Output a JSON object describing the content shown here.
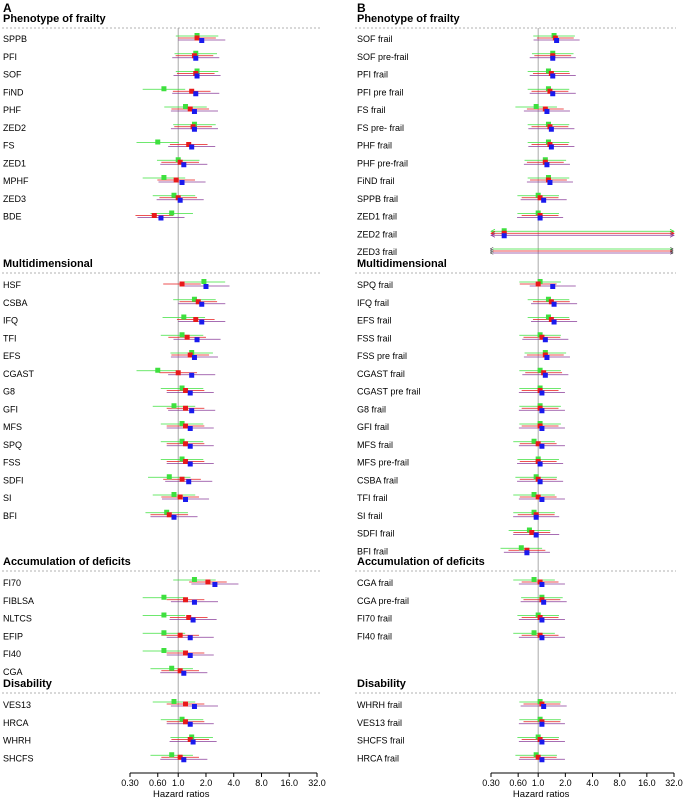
{
  "figure": {
    "x_axis_label": "Hazard ratios",
    "x_ticks": [
      "0.30",
      "0.60",
      "1.0",
      "2.0",
      "4.0",
      "8.0",
      "16.0",
      "32.0"
    ]
  },
  "colors": {
    "red": "#e8191a",
    "green": "#3ee03e",
    "blue": "#1a1aee",
    "purple": "#8a3c9a",
    "sep": "#999999",
    "ref": "#aaaaaa"
  },
  "chart_data": [
    {
      "type": "forest",
      "panel": "A",
      "xlabel": "Hazard ratios",
      "xscale": "log2",
      "xlim": [
        0.3,
        32
      ],
      "reference_line": 1.0,
      "sections": [
        {
          "title": "Phenotype of frailty",
          "rows": [
            {
              "label": "SPPB",
              "green": 1.6,
              "red": 1.6,
              "blue": 1.8
            },
            {
              "label": "PFI",
              "green": 1.55,
              "red": 1.5,
              "blue": 1.55
            },
            {
              "label": "SOF",
              "green": 1.6,
              "red": 1.55,
              "blue": 1.6
            },
            {
              "label": "FiND",
              "green": 0.7,
              "red": 1.4,
              "blue": 1.55
            },
            {
              "label": "PHF",
              "green": 1.2,
              "red": 1.35,
              "blue": 1.5
            },
            {
              "label": "ZED2",
              "green": 1.5,
              "red": 1.45,
              "blue": 1.5
            },
            {
              "label": "FS",
              "green": 0.6,
              "red": 1.3,
              "blue": 1.4
            },
            {
              "label": "ZED1",
              "green": 1.0,
              "red": 1.05,
              "blue": 1.15
            },
            {
              "label": "MPHF",
              "green": 0.7,
              "red": 0.95,
              "blue": 1.1
            },
            {
              "label": "ZED3",
              "green": 0.9,
              "red": 1.0,
              "blue": 1.05
            },
            {
              "label": "BDE",
              "green": 0.85,
              "red": 0.55,
              "blue": 0.65
            }
          ]
        },
        {
          "title": "Multidimensional",
          "rows": [
            {
              "label": "HSF",
              "green": 1.9,
              "red": 1.1,
              "blue": 2.0
            },
            {
              "label": "CSBA",
              "green": 1.5,
              "red": 1.65,
              "blue": 1.8
            },
            {
              "label": "IFQ",
              "green": 1.15,
              "red": 1.55,
              "blue": 1.8
            },
            {
              "label": "TFI",
              "green": 1.1,
              "red": 1.25,
              "blue": 1.6
            },
            {
              "label": "EFS",
              "green": 1.4,
              "red": 1.35,
              "blue": 1.5
            },
            {
              "label": "CGAST",
              "green": 0.6,
              "red": 1.0,
              "blue": 1.4
            },
            {
              "label": "G8",
              "green": 1.1,
              "red": 1.2,
              "blue": 1.35
            },
            {
              "label": "GFI",
              "green": 0.9,
              "red": 1.2,
              "blue": 1.4
            },
            {
              "label": "MFS",
              "green": 1.1,
              "red": 1.2,
              "blue": 1.35
            },
            {
              "label": "SPQ",
              "green": 1.1,
              "red": 1.2,
              "blue": 1.35
            },
            {
              "label": "FSS",
              "green": 1.1,
              "red": 1.2,
              "blue": 1.35
            },
            {
              "label": "SDFI",
              "green": 0.8,
              "red": 1.1,
              "blue": 1.3
            },
            {
              "label": "SI",
              "green": 0.9,
              "red": 1.05,
              "blue": 1.2
            },
            {
              "label": "BFI",
              "green": 0.75,
              "red": 0.8,
              "blue": 0.9
            }
          ]
        },
        {
          "title": "Accumulation of deficits",
          "rows": [
            {
              "label": "FI70",
              "green": 1.5,
              "red": 2.1,
              "blue": 2.5
            },
            {
              "label": "FIBLSA",
              "green": 0.7,
              "red": 1.2,
              "blue": 1.5
            },
            {
              "label": "NLTCS",
              "green": 0.7,
              "red": 1.3,
              "blue": 1.45
            },
            {
              "label": "EFIP",
              "green": 0.7,
              "red": 1.05,
              "blue": 1.35
            },
            {
              "label": "FI40",
              "green": 0.7,
              "red": 1.2,
              "blue": 1.35
            },
            {
              "label": "CGA",
              "green": 0.85,
              "red": 1.05,
              "blue": 1.15
            }
          ]
        },
        {
          "title": "Disability",
          "rows": [
            {
              "label": "VES13",
              "green": 0.9,
              "red": 1.2,
              "blue": 1.5
            },
            {
              "label": "HRCA",
              "green": 1.1,
              "red": 1.2,
              "blue": 1.35
            },
            {
              "label": "WHRH",
              "green": 1.4,
              "red": 1.35,
              "blue": 1.45
            },
            {
              "label": "SHCFS",
              "green": 0.85,
              "red": 1.05,
              "blue": 1.15
            }
          ]
        }
      ]
    },
    {
      "type": "forest",
      "panel": "B",
      "xlabel": "Hazard ratios",
      "xscale": "log2",
      "xlim": [
        0.3,
        32
      ],
      "reference_line": 1.0,
      "sections": [
        {
          "title": "Phenotype of frailty",
          "rows": [
            {
              "label": "SOF frail",
              "green": 1.5,
              "red": 1.55,
              "blue": 1.6
            },
            {
              "label": "SOF pre-frail",
              "green": 1.45,
              "red": 1.45,
              "blue": 1.45
            },
            {
              "label": "PFI  frail",
              "green": 1.3,
              "red": 1.4,
              "blue": 1.45
            },
            {
              "label": "PFI pre frail",
              "green": 1.3,
              "red": 1.35,
              "blue": 1.45
            },
            {
              "label": "FS frail",
              "green": 0.95,
              "red": 1.2,
              "blue": 1.25
            },
            {
              "label": "FS pre- frail",
              "green": 1.3,
              "red": 1.35,
              "blue": 1.4
            },
            {
              "label": "PHF frail",
              "green": 1.3,
              "red": 1.35,
              "blue": 1.4
            },
            {
              "label": "PHF pre-frail",
              "green": 1.2,
              "red": 1.2,
              "blue": 1.25
            },
            {
              "label": "FiND frail",
              "green": 1.3,
              "red": 1.3,
              "blue": 1.35
            },
            {
              "label": "SPPB frail",
              "green": 1.0,
              "red": 1.05,
              "blue": 1.15
            },
            {
              "label": "ZED1 frail",
              "green": 1.0,
              "red": 1.05,
              "blue": 1.05
            },
            {
              "label": "ZED2 frail",
              "green": 0.42,
              "red": 0.42,
              "blue": 0.42
            },
            {
              "label": "ZED3 frail",
              "green": null,
              "red": null,
              "blue": null
            }
          ]
        },
        {
          "title": "Multidimensional",
          "rows": [
            {
              "label": "SPQ frail",
              "green": 1.05,
              "red": 1.0,
              "blue": 1.45
            },
            {
              "label": "IFQ frail",
              "green": 1.3,
              "red": 1.4,
              "blue": 1.5
            },
            {
              "label": "EFS frail",
              "green": 1.3,
              "red": 1.4,
              "blue": 1.5
            },
            {
              "label": "FSS frail",
              "green": 1.05,
              "red": 1.1,
              "blue": 1.2
            },
            {
              "label": "FSS pre frail",
              "green": 1.2,
              "red": 1.2,
              "blue": 1.25
            },
            {
              "label": "CGAST frail",
              "green": 1.05,
              "red": 1.15,
              "blue": 1.2
            },
            {
              "label": "CGAST pre frail",
              "green": 1.05,
              "red": 1.05,
              "blue": 1.1
            },
            {
              "label": "G8 frail",
              "green": 1.05,
              "red": 1.05,
              "blue": 1.1
            },
            {
              "label": "GFI frail",
              "green": 1.05,
              "red": 1.05,
              "blue": 1.1
            },
            {
              "label": "MFS frail",
              "green": 0.9,
              "red": 1.0,
              "blue": 1.1
            },
            {
              "label": "MFS pre-frail",
              "green": 1.0,
              "red": 1.0,
              "blue": 1.05
            },
            {
              "label": "CSBA frail",
              "green": 0.95,
              "red": 1.0,
              "blue": 1.05
            },
            {
              "label": "TFI frail",
              "green": 0.9,
              "red": 1.0,
              "blue": 1.1
            },
            {
              "label": "SI frail",
              "green": 0.9,
              "red": 0.95,
              "blue": 0.95
            },
            {
              "label": "SDFI frail",
              "green": 0.8,
              "red": 0.85,
              "blue": 0.95
            },
            {
              "label": "BFI frail",
              "green": 0.65,
              "red": 0.75,
              "blue": 0.75
            }
          ]
        },
        {
          "title": "Accumulation of deficits",
          "rows": [
            {
              "label": "CGA frail",
              "green": 0.9,
              "red": 1.05,
              "blue": 1.1
            },
            {
              "label": "CGA pre-frail",
              "green": 1.1,
              "red": 1.1,
              "blue": 1.15
            },
            {
              "label": "FI70 frail",
              "green": 1.0,
              "red": 1.05,
              "blue": 1.1
            },
            {
              "label": "FI40 frail",
              "green": 0.9,
              "red": 1.05,
              "blue": 1.1
            }
          ]
        },
        {
          "title": "Disability",
          "rows": [
            {
              "label": "WHRH frail",
              "green": 1.05,
              "red": 1.1,
              "blue": 1.15
            },
            {
              "label": "VES13 frail",
              "green": 1.05,
              "red": 1.1,
              "blue": 1.1
            },
            {
              "label": "SHCFS frail",
              "green": 1.0,
              "red": 1.05,
              "blue": 1.1
            },
            {
              "label": "HRCA frail",
              "green": 0.95,
              "red": 1.0,
              "blue": 1.1
            }
          ]
        }
      ]
    }
  ]
}
